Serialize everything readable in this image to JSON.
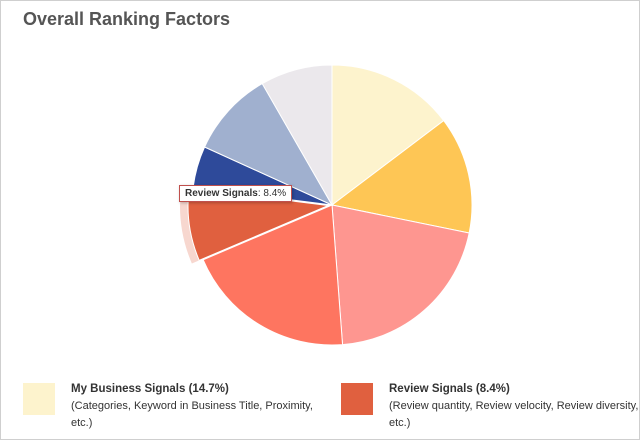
{
  "chart_data": {
    "type": "pie",
    "title": "Overall Ranking Factors",
    "categories": [
      "My Business Signals (14.7%)",
      null,
      null,
      null,
      "Review Signals (8.4%)",
      null,
      null,
      null
    ],
    "descriptions": [
      "(Categories, Keyword in Business Title, Proximity, etc.)",
      null,
      null,
      null,
      "(Review quantity, Review velocity, Review diversity, etc.)",
      null,
      null,
      null
    ],
    "values": [
      14.7,
      13.5,
      20.6,
      19.8,
      8.4,
      4.8,
      9.9,
      8.3
    ],
    "colors": [
      "#fdf3cd",
      "#fec655",
      "#fe9690",
      "#fe7560",
      "#e0603f",
      "#2e4a9a",
      "#a0b0cf",
      "#ebe8ec"
    ],
    "highlighted": 4,
    "tooltip": {
      "name": "Review Signals",
      "text": ": 8.4%"
    }
  }
}
